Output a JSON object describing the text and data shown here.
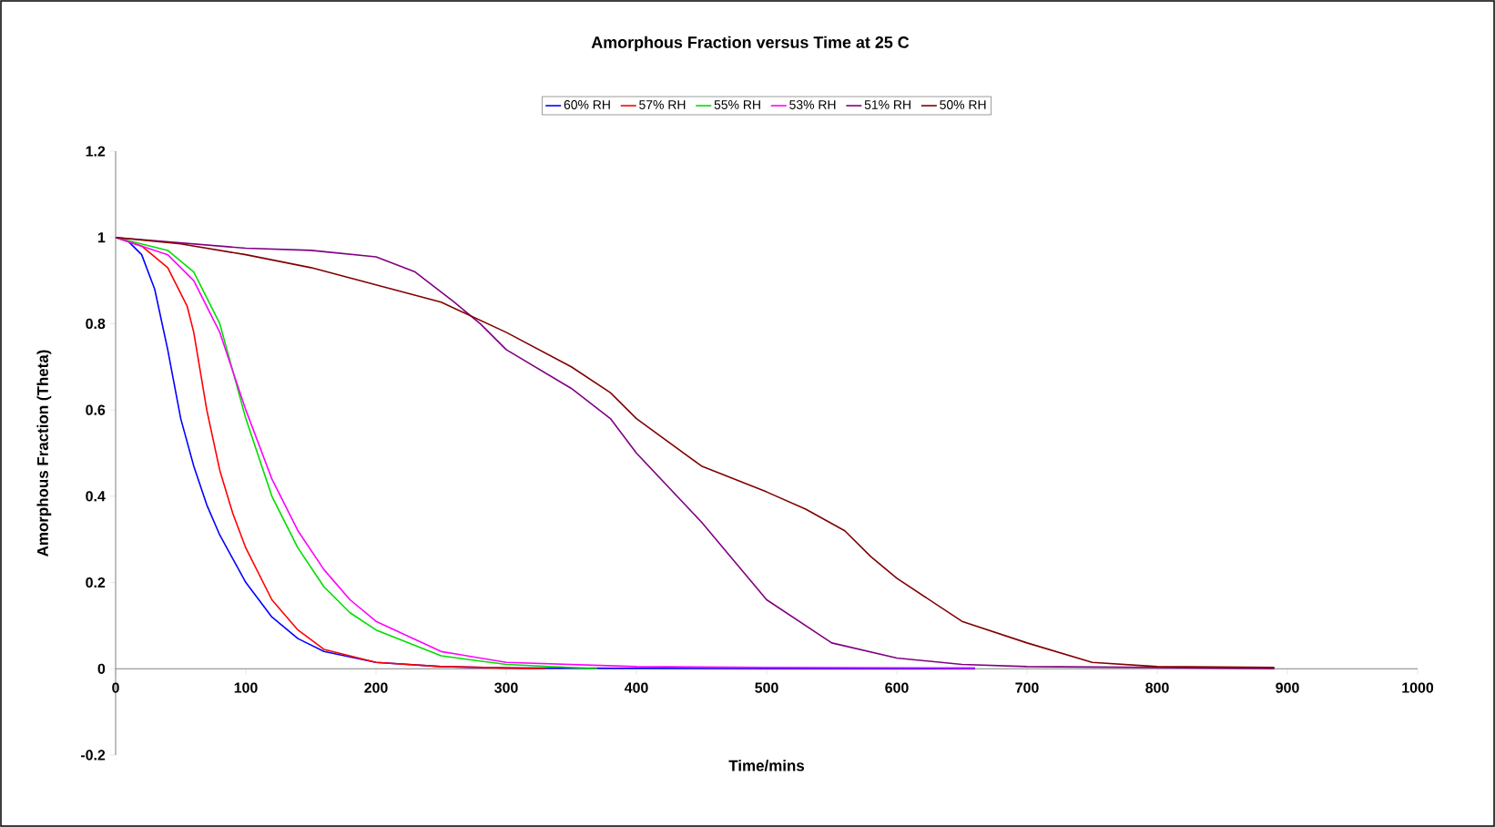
{
  "chart_data": {
    "type": "line",
    "title": "Amorphous Fraction versus Time at 25 C",
    "xlabel": "Time/mins",
    "ylabel": "Amorphous Fraction (Theta)",
    "xlim": [
      0,
      1000
    ],
    "ylim": [
      -0.2,
      1.2
    ],
    "xticks": [
      0,
      100,
      200,
      300,
      400,
      500,
      600,
      700,
      800,
      900,
      1000
    ],
    "yticks": [
      -0.2,
      0,
      0.2,
      0.4,
      0.6,
      0.8,
      1,
      1.2
    ],
    "legend": "top",
    "grid": false,
    "marker": "none",
    "line_style": "solid",
    "series": [
      {
        "name": "60% RH",
        "color": "#0000ff",
        "x": [
          0,
          10,
          20,
          30,
          40,
          50,
          60,
          70,
          80,
          100,
          120,
          140,
          160,
          200,
          250,
          300,
          400,
          500,
          660
        ],
        "values": [
          1,
          0.99,
          0.96,
          0.88,
          0.74,
          0.58,
          0.47,
          0.38,
          0.31,
          0.2,
          0.12,
          0.07,
          0.04,
          0.015,
          0.005,
          0.002,
          0.001,
          0,
          0
        ]
      },
      {
        "name": "57% RH",
        "color": "#ff0000",
        "x": [
          0,
          20,
          40,
          55,
          60,
          70,
          80,
          90,
          100,
          120,
          140,
          160,
          200,
          250,
          300,
          330
        ],
        "values": [
          1,
          0.98,
          0.93,
          0.84,
          0.78,
          0.6,
          0.46,
          0.36,
          0.28,
          0.16,
          0.09,
          0.045,
          0.015,
          0.005,
          0.002,
          0
        ]
      },
      {
        "name": "55% RH",
        "color": "#00dd00",
        "x": [
          0,
          40,
          60,
          80,
          100,
          120,
          140,
          160,
          180,
          200,
          250,
          300,
          370
        ],
        "values": [
          1,
          0.97,
          0.92,
          0.8,
          0.58,
          0.4,
          0.28,
          0.19,
          0.13,
          0.09,
          0.03,
          0.01,
          0
        ]
      },
      {
        "name": "53% RH",
        "color": "#ff00ff",
        "x": [
          0,
          40,
          60,
          80,
          100,
          120,
          140,
          160,
          180,
          200,
          250,
          300,
          400,
          500,
          660
        ],
        "values": [
          1,
          0.96,
          0.9,
          0.78,
          0.6,
          0.44,
          0.32,
          0.23,
          0.16,
          0.11,
          0.04,
          0.015,
          0.005,
          0.003,
          0.002
        ]
      },
      {
        "name": "51% RH",
        "color": "#800080",
        "x": [
          0,
          100,
          150,
          200,
          230,
          260,
          280,
          300,
          350,
          380,
          400,
          450,
          500,
          550,
          600,
          650,
          700,
          800,
          890
        ],
        "values": [
          1,
          0.975,
          0.97,
          0.955,
          0.92,
          0.85,
          0.8,
          0.74,
          0.65,
          0.58,
          0.5,
          0.34,
          0.16,
          0.06,
          0.025,
          0.01,
          0.005,
          0.003,
          0
        ]
      },
      {
        "name": "50% RH",
        "color": "#800000",
        "x": [
          0,
          50,
          100,
          150,
          200,
          250,
          300,
          350,
          380,
          400,
          450,
          500,
          530,
          560,
          580,
          600,
          650,
          700,
          750,
          800,
          890
        ],
        "values": [
          1,
          0.985,
          0.96,
          0.93,
          0.89,
          0.85,
          0.78,
          0.7,
          0.64,
          0.58,
          0.47,
          0.41,
          0.37,
          0.32,
          0.26,
          0.21,
          0.11,
          0.06,
          0.015,
          0.005,
          0.003
        ]
      }
    ]
  }
}
